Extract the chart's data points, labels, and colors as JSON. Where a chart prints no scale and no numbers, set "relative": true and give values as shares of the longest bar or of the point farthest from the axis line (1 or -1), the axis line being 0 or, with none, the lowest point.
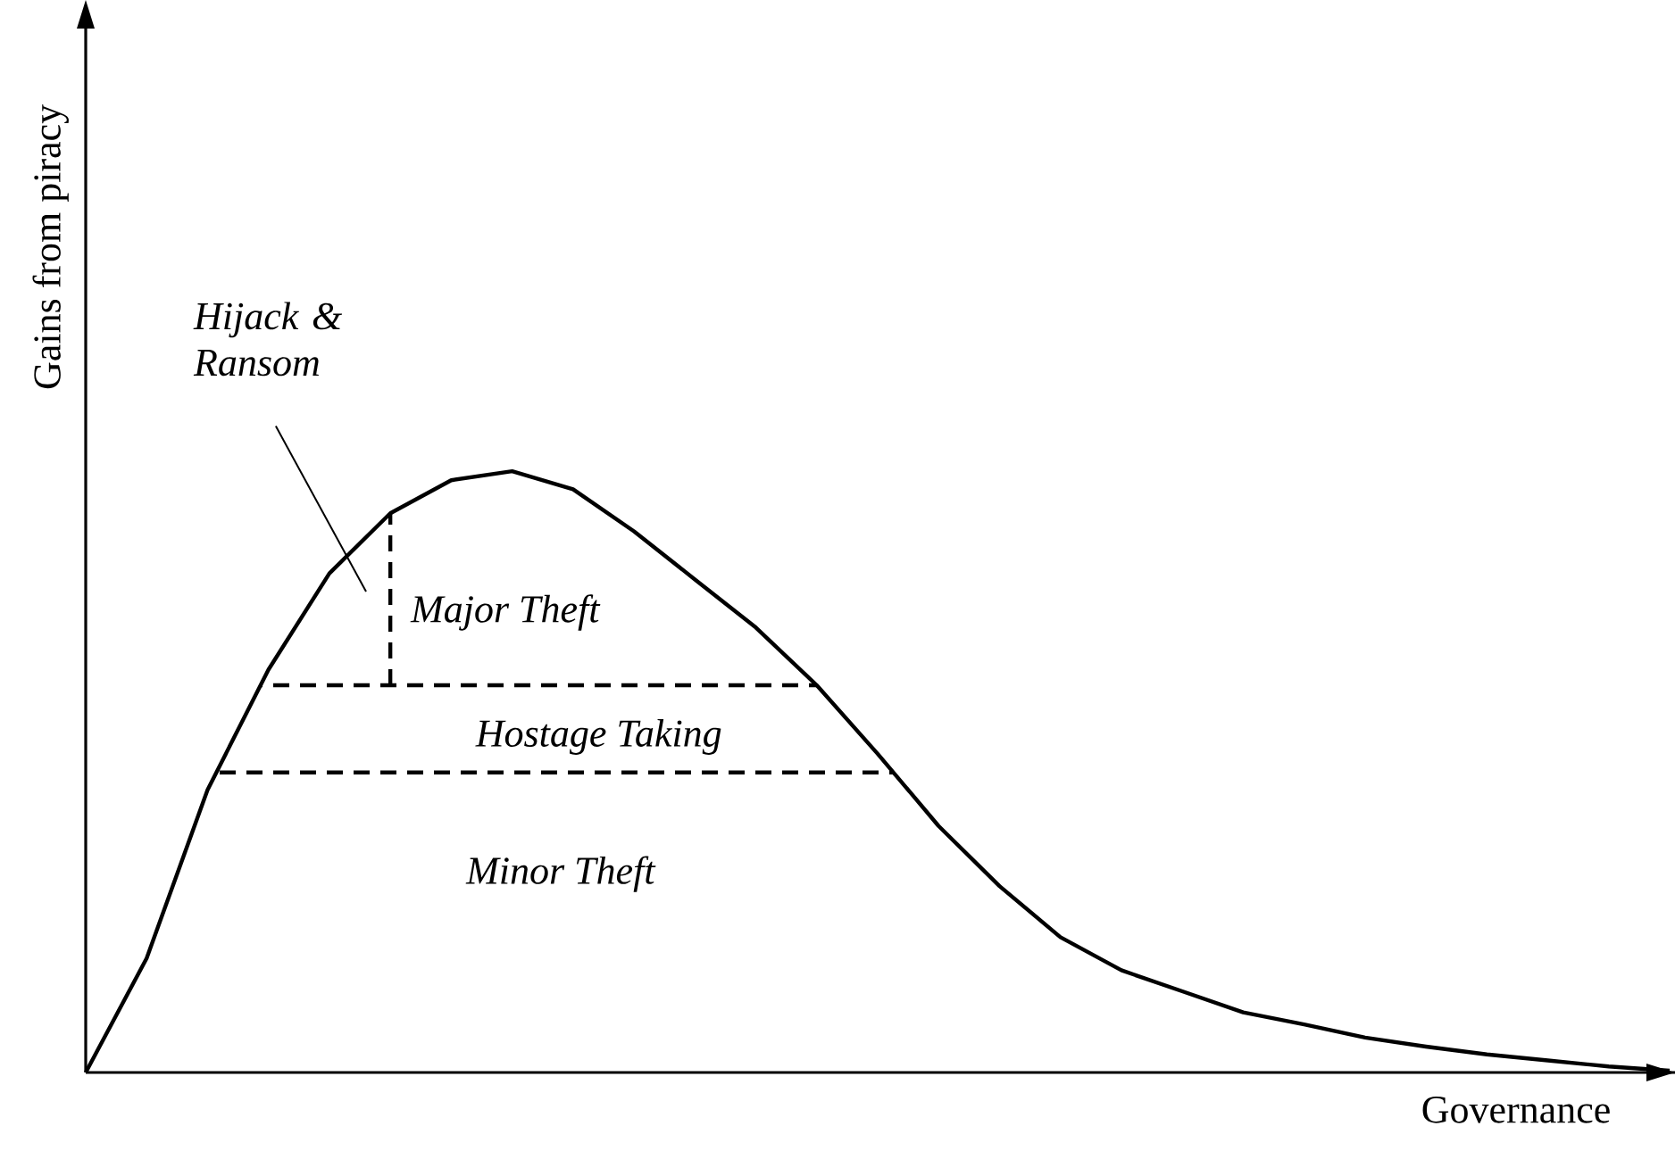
{
  "chart_data": {
    "type": "line",
    "relative": true,
    "xlabel": "Governance",
    "ylabel": "Gains from piracy",
    "marker": "none",
    "tick_labels": false,
    "line_style": "solid",
    "categories": [
      null,
      null,
      null,
      null,
      null,
      null,
      null,
      null,
      null,
      null,
      null,
      null,
      null,
      null,
      null,
      null,
      null,
      null,
      null,
      null,
      null,
      null,
      null,
      null,
      null,
      null,
      null
    ],
    "series": [
      {
        "color": "#000000",
        "values": [
          0,
          0.19,
          0.47,
          0.67,
          0.83,
          0.93,
          0.985,
          1,
          0.97,
          0.9,
          0.82,
          0.74,
          0.644,
          0.53,
          0.41,
          0.31,
          0.225,
          0.17,
          0.135,
          0.1,
          0.08,
          0.058,
          0.043,
          0.03,
          0.02,
          0.01,
          0.003
        ]
      }
    ],
    "ref_lines": [
      {
        "axis": "y",
        "value": 0.644,
        "line_style": "dashed",
        "color": "#000000"
      },
      {
        "axis": "y",
        "value": 0.499,
        "line_style": "dashed",
        "color": "#000000"
      }
    ],
    "annotations": [
      "Hijack & Ransom",
      "Major Theft",
      "Hostage Taking",
      "Minor Theft"
    ]
  }
}
